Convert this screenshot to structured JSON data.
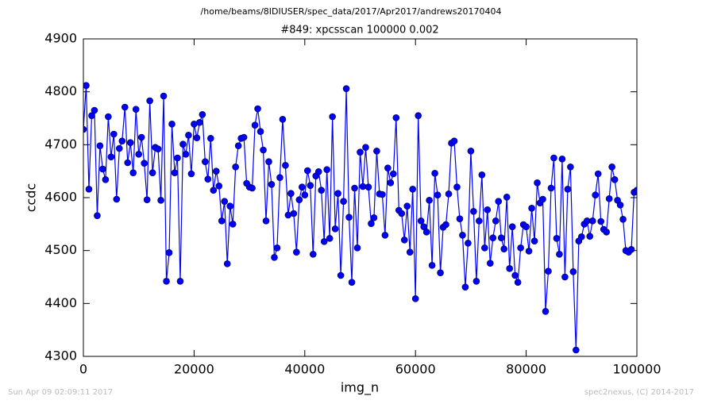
{
  "chart_data": {
    "type": "line",
    "suptitle": "/home/beams/8IDIUSER/spec_data/2017/Apr2017/andrews20170404",
    "title": "#849: xpcsscan 100000 0.002",
    "xlabel": "img_n",
    "ylabel": "ccdc",
    "footer_left": "Sun Apr 09 02:09:11 2017",
    "footer_right": "spec2nexus, (C) 2014-2017",
    "xlim": [
      0,
      100000
    ],
    "xticks": [
      0,
      20000,
      40000,
      60000,
      80000,
      100000
    ],
    "ylim": [
      4300,
      4900
    ],
    "yticks": [
      4300,
      4400,
      4500,
      4600,
      4700,
      4800,
      4900
    ],
    "grid": false,
    "x": [
      0,
      500,
      1000,
      1500,
      2000,
      2500,
      3000,
      3500,
      4000,
      4500,
      5000,
      5500,
      6000,
      6500,
      7000,
      7500,
      8000,
      8500,
      9000,
      9500,
      10000,
      10500,
      11000,
      11500,
      12000,
      12500,
      13000,
      13500,
      14000,
      14500,
      15000,
      15500,
      16000,
      16500,
      17000,
      17500,
      18000,
      18500,
      19000,
      19500,
      20000,
      20500,
      21000,
      21500,
      22000,
      22500,
      23000,
      23500,
      24000,
      24500,
      25000,
      25500,
      26000,
      26500,
      27000,
      27500,
      28000,
      28500,
      29000,
      29500,
      30000,
      30500,
      31000,
      31500,
      32000,
      32500,
      33000,
      33500,
      34000,
      34500,
      35000,
      35500,
      36000,
      36500,
      37000,
      37500,
      38000,
      38500,
      39000,
      39500,
      40000,
      40500,
      41000,
      41500,
      42000,
      42500,
      43000,
      43500,
      44000,
      44500,
      45000,
      45500,
      46000,
      46500,
      47000,
      47500,
      48000,
      48500,
      49000,
      49500,
      50000,
      50500,
      51000,
      51500,
      52000,
      52500,
      53000,
      53500,
      54000,
      54500,
      55000,
      55500,
      56000,
      56500,
      57000,
      57500,
      58000,
      58500,
      59000,
      59500,
      60000,
      60500,
      61000,
      61500,
      62000,
      62500,
      63000,
      63500,
      64000,
      64500,
      65000,
      65500,
      66000,
      66500,
      67000,
      67500,
      68000,
      68500,
      69000,
      69500,
      70000,
      70500,
      71000,
      71500,
      72000,
      72500,
      73000,
      73500,
      74000,
      74500,
      75000,
      75500,
      76000,
      76500,
      77000,
      77500,
      78000,
      78500,
      79000,
      79500,
      80000,
      80500,
      81000,
      81500,
      82000,
      82500,
      83000,
      83500,
      84000,
      84500,
      85000,
      85500,
      86000,
      86500,
      87000,
      87500,
      88000,
      88500,
      89000,
      89500,
      90000,
      90500,
      91000,
      91500,
      92000,
      92500,
      93000,
      93500,
      94000,
      94500,
      95000,
      95500,
      96000,
      96500,
      97000,
      97500,
      98000,
      98500,
      99000,
      99500,
      100000
    ],
    "series": [
      {
        "name": "ccdc",
        "color": "#0000ff",
        "values": [
          4729,
          4812,
          4616,
          4755,
          4765,
          4566,
          4698,
          4654,
          4634,
          4753,
          4677,
          4720,
          4597,
          4693,
          4707,
          4771,
          4666,
          4704,
          4647,
          4767,
          4682,
          4714,
          4665,
          4596,
          4783,
          4647,
          4695,
          4692,
          4595,
          4792,
          4442,
          4496,
          4739,
          4647,
          4675,
          4442,
          4701,
          4682,
          4718,
          4645,
          4739,
          4713,
          4742,
          4757,
          4668,
          4635,
          4712,
          4614,
          4650,
          4622,
          4556,
          4593,
          4475,
          4584,
          4550,
          4658,
          4698,
          4712,
          4714,
          4627,
          4620,
          4618,
          4737,
          4768,
          4725,
          4690,
          4556,
          4668,
          4625,
          4487,
          4505,
          4638,
          4748,
          4661,
          4567,
          4608,
          4570,
          4497,
          4596,
          4620,
          4605,
          4651,
          4623,
          4493,
          4641,
          4649,
          4614,
          4517,
          4653,
          4523,
          4753,
          4541,
          4608,
          4453,
          4593,
          4806,
          4563,
          4440,
          4618,
          4505,
          4686,
          4621,
          4695,
          4620,
          4551,
          4562,
          4688,
          4607,
          4606,
          4529,
          4656,
          4628,
          4645,
          4751,
          4576,
          4570,
          4520,
          4584,
          4497,
          4616,
          4409,
          4755,
          4556,
          4545,
          4535,
          4595,
          4472,
          4646,
          4605,
          4458,
          4544,
          4549,
          4607,
          4703,
          4707,
          4620,
          4560,
          4529,
          4431,
          4514,
          4688,
          4574,
          4442,
          4556,
          4643,
          4505,
          4577,
          4476,
          4524,
          4556,
          4593,
          4524,
          4503,
          4601,
          4466,
          4545,
          4453,
          4440,
          4505,
          4549,
          4545,
          4499,
          4580,
          4518,
          4628,
          4590,
          4597,
          4385,
          4461,
          4618,
          4675,
          4523,
          4493,
          4673,
          4450,
          4616,
          4658,
          4460,
          4312,
          4518,
          4526,
          4550,
          4556,
          4527,
          4556,
          4605,
          4645,
          4555,
          4540,
          4535,
          4598,
          4658,
          4634,
          4595,
          4586,
          4559,
          4500,
          4497,
          4502,
          4610,
          4614
        ]
      }
    ]
  }
}
